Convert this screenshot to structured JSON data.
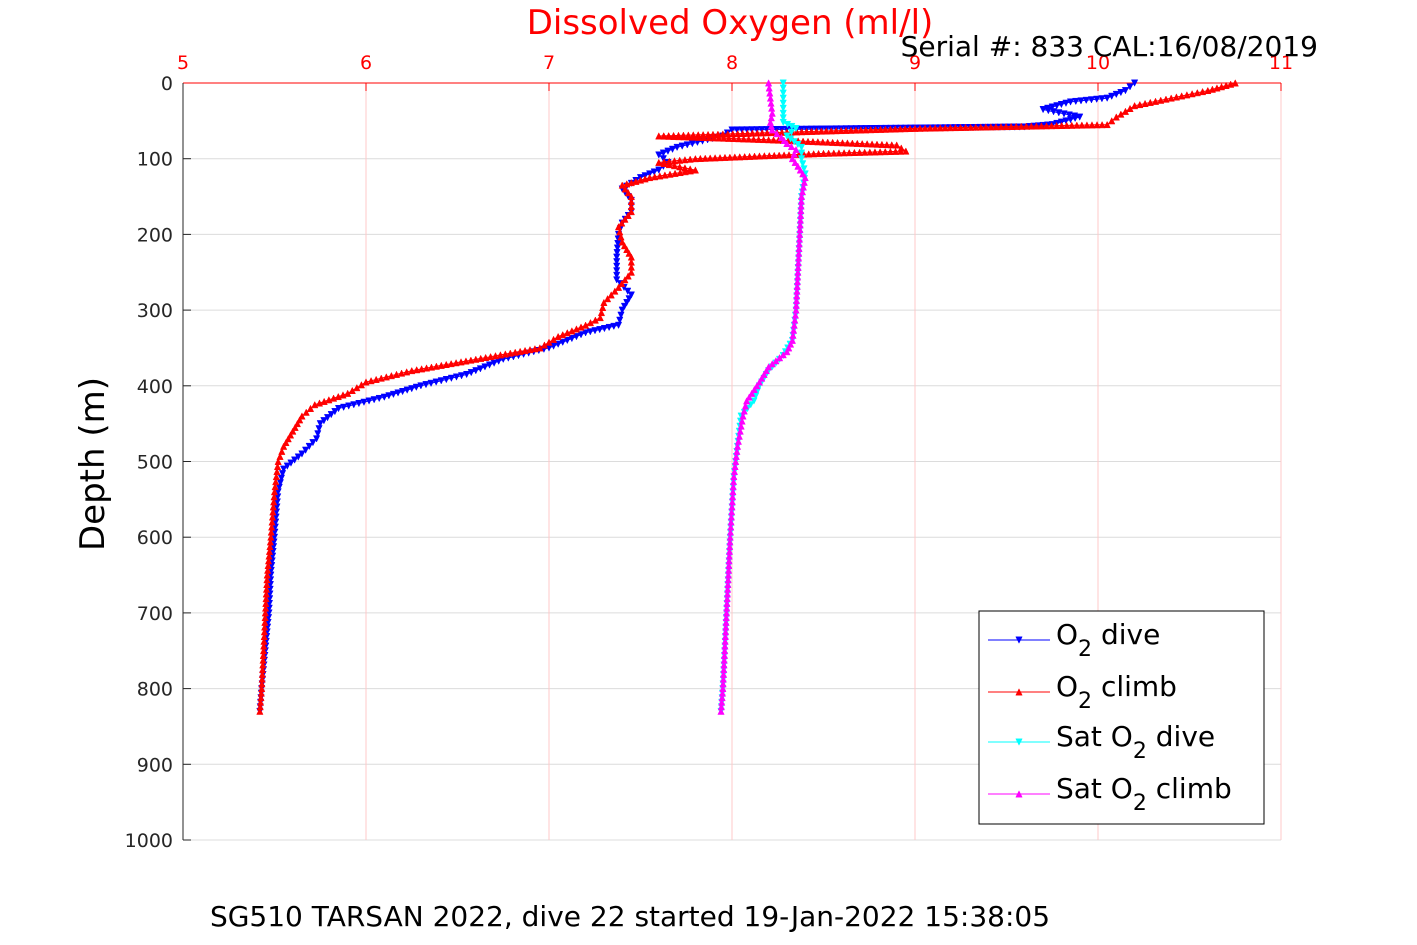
{
  "chart_data": {
    "type": "line",
    "title": "Dissolved Oxygen (ml/l)",
    "subtitle": "Serial #: 833  CAL:16/08/2019",
    "footer": "SG510 TARSAN 2022, dive 22 started 19-Jan-2022 15:38:05",
    "xlabel": "",
    "ylabel": "Depth (m)",
    "xlim": [
      5,
      11
    ],
    "ylim": [
      0,
      1000
    ],
    "y_reversed": true,
    "x_axis_position": "top",
    "xticks": [
      "5",
      "6",
      "7",
      "8",
      "9",
      "10",
      "11"
    ],
    "yticks": [
      "0",
      "100",
      "200",
      "300",
      "400",
      "500",
      "600",
      "700",
      "800",
      "900",
      "1000"
    ],
    "grid": true,
    "legend_position": "bottom-right",
    "colors": {
      "axis_title": "#ff0000",
      "grid": "#dcdcdc",
      "xtick_grid": "#ffc8c8"
    },
    "series": [
      {
        "name": "O2 dive",
        "legend_main": "O",
        "legend_sub": "2",
        "legend_rest": " dive",
        "color": "#0000ff",
        "marker": "triangle-down",
        "points": [
          [
            10.2,
            0
          ],
          [
            10.15,
            10
          ],
          [
            10.05,
            20
          ],
          [
            9.85,
            25
          ],
          [
            9.7,
            35
          ],
          [
            9.9,
            45
          ],
          [
            9.75,
            55
          ],
          [
            9.6,
            58
          ],
          [
            8.0,
            62
          ],
          [
            7.95,
            70
          ],
          [
            7.7,
            85
          ],
          [
            7.6,
            95
          ],
          [
            7.65,
            105
          ],
          [
            7.6,
            115
          ],
          [
            7.5,
            125
          ],
          [
            7.4,
            140
          ],
          [
            7.45,
            155
          ],
          [
            7.45,
            170
          ],
          [
            7.4,
            185
          ],
          [
            7.38,
            200
          ],
          [
            7.37,
            230
          ],
          [
            7.37,
            260
          ],
          [
            7.45,
            280
          ],
          [
            7.4,
            300
          ],
          [
            7.38,
            320
          ],
          [
            7.2,
            330
          ],
          [
            7.0,
            350
          ],
          [
            6.75,
            365
          ],
          [
            6.55,
            385
          ],
          [
            6.3,
            400
          ],
          [
            6.1,
            415
          ],
          [
            5.85,
            430
          ],
          [
            5.75,
            450
          ],
          [
            5.73,
            470
          ],
          [
            5.65,
            490
          ],
          [
            5.55,
            510
          ],
          [
            5.52,
            540
          ],
          [
            5.5,
            600
          ],
          [
            5.48,
            650
          ],
          [
            5.47,
            700
          ],
          [
            5.45,
            750
          ],
          [
            5.43,
            800
          ],
          [
            5.42,
            830
          ]
        ]
      },
      {
        "name": "O2 climb",
        "legend_main": "O",
        "legend_sub": "2",
        "legend_rest": " climb",
        "color": "#ff0000",
        "marker": "triangle-up",
        "points": [
          [
            10.75,
            0
          ],
          [
            10.6,
            10
          ],
          [
            10.4,
            20
          ],
          [
            10.2,
            30
          ],
          [
            10.1,
            45
          ],
          [
            10.05,
            55
          ],
          [
            9.0,
            60
          ],
          [
            8.3,
            65
          ],
          [
            7.6,
            70
          ],
          [
            8.2,
            75
          ],
          [
            8.9,
            82
          ],
          [
            8.95,
            90
          ],
          [
            8.5,
            93
          ],
          [
            7.8,
            100
          ],
          [
            7.6,
            105
          ],
          [
            7.8,
            115
          ],
          [
            7.55,
            125
          ],
          [
            7.4,
            135
          ],
          [
            7.45,
            150
          ],
          [
            7.45,
            170
          ],
          [
            7.38,
            190
          ],
          [
            7.4,
            210
          ],
          [
            7.45,
            230
          ],
          [
            7.45,
            250
          ],
          [
            7.38,
            270
          ],
          [
            7.3,
            290
          ],
          [
            7.28,
            310
          ],
          [
            7.2,
            320
          ],
          [
            7.05,
            335
          ],
          [
            6.95,
            350
          ],
          [
            6.6,
            365
          ],
          [
            6.25,
            380
          ],
          [
            6.0,
            395
          ],
          [
            5.9,
            410
          ],
          [
            5.72,
            425
          ],
          [
            5.65,
            440
          ],
          [
            5.6,
            460
          ],
          [
            5.55,
            480
          ],
          [
            5.52,
            500
          ],
          [
            5.5,
            540
          ],
          [
            5.48,
            600
          ],
          [
            5.46,
            650
          ],
          [
            5.45,
            700
          ],
          [
            5.44,
            750
          ],
          [
            5.43,
            800
          ],
          [
            5.42,
            830
          ]
        ]
      },
      {
        "name": "Sat O2 dive",
        "legend_main": "Sat O",
        "legend_sub": "2",
        "legend_rest": " dive",
        "color": "#00ffff",
        "marker": "triangle-down",
        "points": [
          [
            8.28,
            0
          ],
          [
            8.28,
            20
          ],
          [
            8.28,
            40
          ],
          [
            8.28,
            52
          ],
          [
            8.35,
            60
          ],
          [
            8.3,
            70
          ],
          [
            8.38,
            85
          ],
          [
            8.38,
            100
          ],
          [
            8.4,
            120
          ],
          [
            8.38,
            150
          ],
          [
            8.37,
            200
          ],
          [
            8.36,
            250
          ],
          [
            8.35,
            300
          ],
          [
            8.33,
            340
          ],
          [
            8.28,
            360
          ],
          [
            8.2,
            380
          ],
          [
            8.15,
            400
          ],
          [
            8.12,
            420
          ],
          [
            8.05,
            440
          ],
          [
            8.03,
            480
          ],
          [
            8.01,
            520
          ],
          [
            8.0,
            560
          ],
          [
            7.99,
            600
          ],
          [
            7.98,
            650
          ],
          [
            7.97,
            700
          ],
          [
            7.96,
            750
          ],
          [
            7.95,
            800
          ],
          [
            7.94,
            830
          ]
        ]
      },
      {
        "name": "Sat O2 climb",
        "legend_main": "Sat O",
        "legend_sub": "2",
        "legend_rest": " climb",
        "color": "#ff00ff",
        "marker": "triangle-up",
        "points": [
          [
            8.2,
            0
          ],
          [
            8.21,
            20
          ],
          [
            8.22,
            40
          ],
          [
            8.21,
            52
          ],
          [
            8.22,
            62
          ],
          [
            8.27,
            72
          ],
          [
            8.3,
            80
          ],
          [
            8.35,
            88
          ],
          [
            8.33,
            100
          ],
          [
            8.36,
            110
          ],
          [
            8.4,
            125
          ],
          [
            8.38,
            150
          ],
          [
            8.37,
            200
          ],
          [
            8.36,
            250
          ],
          [
            8.35,
            300
          ],
          [
            8.33,
            340
          ],
          [
            8.3,
            355
          ],
          [
            8.2,
            375
          ],
          [
            8.15,
            395
          ],
          [
            8.08,
            420
          ],
          [
            8.06,
            440
          ],
          [
            8.03,
            480
          ],
          [
            8.01,
            520
          ],
          [
            8.0,
            560
          ],
          [
            7.99,
            600
          ],
          [
            7.98,
            650
          ],
          [
            7.97,
            700
          ],
          [
            7.96,
            750
          ],
          [
            7.95,
            800
          ],
          [
            7.94,
            830
          ]
        ]
      }
    ]
  }
}
